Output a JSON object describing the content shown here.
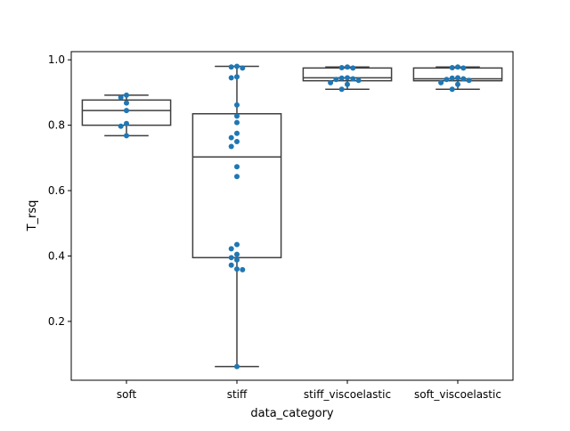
{
  "chart_data": {
    "type": "box",
    "xlabel": "data_category",
    "ylabel": "T_rsq",
    "ylim": [
      0.02,
      1.025
    ],
    "y_ticks": [
      0.2,
      0.4,
      0.6,
      0.8,
      1.0
    ],
    "y_tick_labels": [
      "0.2",
      "0.4",
      "0.6",
      "0.8",
      "1.0"
    ],
    "categories": [
      "soft",
      "stiff",
      "stiff_viscoelastic",
      "soft_viscoelastic"
    ],
    "grid": false,
    "legend": "none",
    "colors": {
      "box_edge": "#3f3f3f",
      "point": "#1f77b4",
      "axes": "#000000"
    },
    "boxes": [
      {
        "category": "soft",
        "whisker_low": 0.768,
        "q1": 0.8,
        "median": 0.845,
        "q3": 0.877,
        "whisker_high": 0.892
      },
      {
        "category": "stiff",
        "whisker_low": 0.062,
        "q1": 0.395,
        "median": 0.703,
        "q3": 0.835,
        "whisker_high": 0.98
      },
      {
        "category": "stiff_viscoelastic",
        "whisker_low": 0.91,
        "q1": 0.936,
        "median": 0.945,
        "q3": 0.975,
        "whisker_high": 0.978
      },
      {
        "category": "soft_viscoelastic",
        "whisker_low": 0.91,
        "q1": 0.936,
        "median": 0.942,
        "q3": 0.975,
        "whisker_high": 0.978
      }
    ],
    "points": [
      {
        "category": "soft",
        "values": [
          0.892,
          0.885,
          0.868,
          0.845,
          0.805,
          0.797,
          0.768
        ]
      },
      {
        "category": "stiff",
        "values": [
          0.98,
          0.978,
          0.975,
          0.948,
          0.945,
          0.862,
          0.828,
          0.808,
          0.775,
          0.762,
          0.75,
          0.735,
          0.673,
          0.643,
          0.435,
          0.422,
          0.405,
          0.395,
          0.388,
          0.372,
          0.36,
          0.358,
          0.062
        ]
      },
      {
        "category": "stiff_viscoelastic",
        "values": [
          0.978,
          0.976,
          0.975,
          0.945,
          0.944,
          0.942,
          0.94,
          0.937,
          0.93,
          0.925,
          0.91
        ]
      },
      {
        "category": "soft_viscoelastic",
        "values": [
          0.978,
          0.976,
          0.975,
          0.945,
          0.944,
          0.942,
          0.94,
          0.937,
          0.93,
          0.925,
          0.91
        ]
      }
    ]
  }
}
